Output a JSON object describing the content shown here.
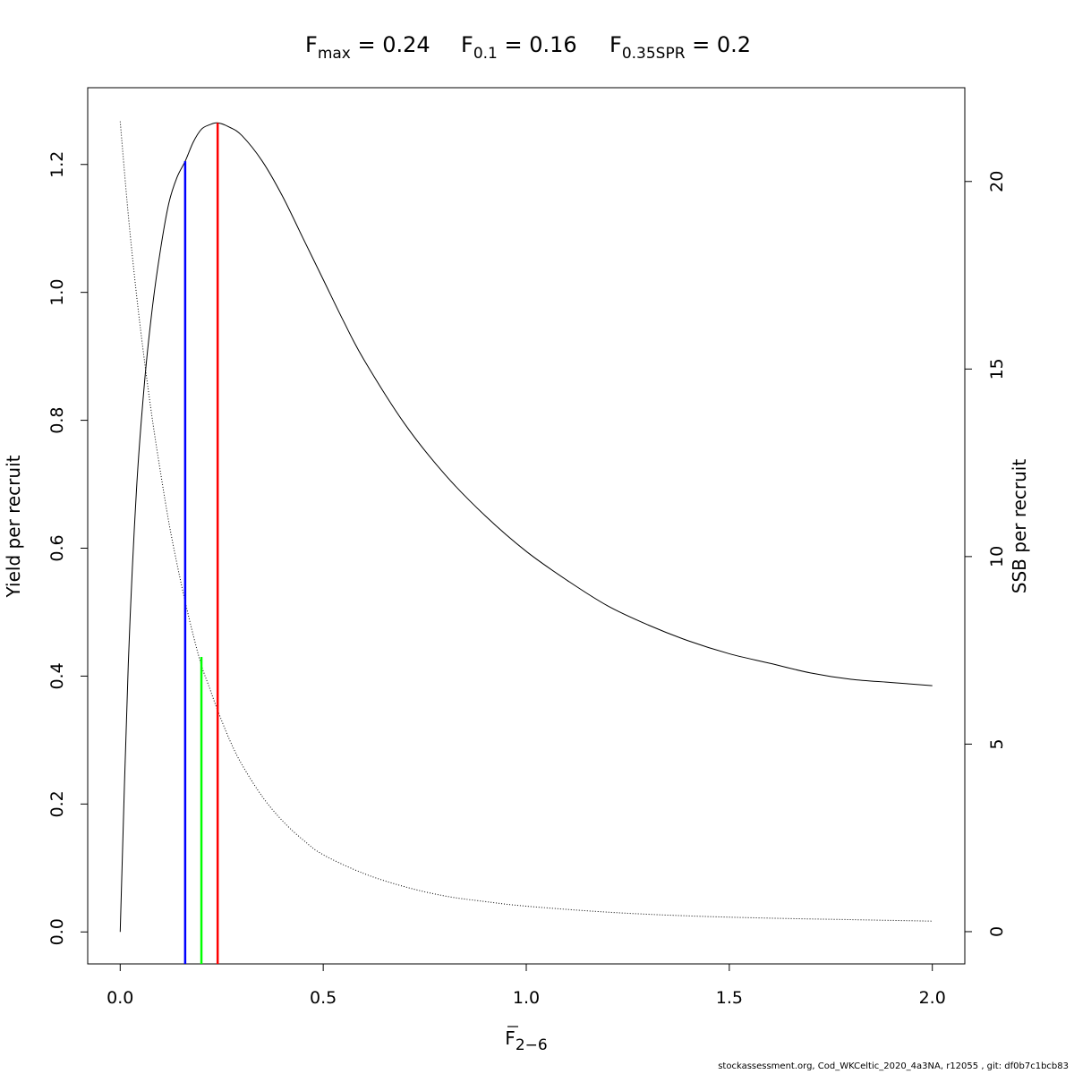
{
  "title": {
    "fmax": {
      "main": "F",
      "sub": "max",
      "rest": " = 0.24"
    },
    "f01": {
      "main": "F",
      "sub": "0.1",
      "rest": " = 0.16"
    },
    "fspr": {
      "main": "F",
      "sub": "0.35SPR",
      "rest": " = 0.2"
    }
  },
  "footer": "stockassessment.org, Cod_WKCeltic_2020_4a3NA, r12055 , git: df0b7c1bcb83",
  "chart_data": {
    "type": "line",
    "xlabel": {
      "main": "F",
      "sub": "2−6"
    },
    "ylabel_left": "Yield per recruit",
    "ylabel_right": "SSB per recruit",
    "xlim": [
      -0.08,
      2.08
    ],
    "ylim_left": [
      -0.05,
      1.32
    ],
    "ylim_right": [
      -0.86,
      22.5
    ],
    "x_ticks": [
      "0.0",
      "0.5",
      "1.0",
      "1.5",
      "2.0"
    ],
    "y_left_ticks": [
      "0.0",
      "0.2",
      "0.4",
      "0.6",
      "0.8",
      "1.0",
      "1.2"
    ],
    "y_right_ticks": [
      "0",
      "5",
      "10",
      "15",
      "20"
    ],
    "grid": false,
    "series": [
      {
        "role": "yield",
        "axis": "left",
        "style": "solid",
        "color": "#000000",
        "x": [
          0.0,
          0.02,
          0.04,
          0.06,
          0.08,
          0.1,
          0.12,
          0.14,
          0.16,
          0.18,
          0.2,
          0.22,
          0.24,
          0.27,
          0.3,
          0.35,
          0.4,
          0.45,
          0.5,
          0.55,
          0.6,
          0.7,
          0.8,
          0.9,
          1.0,
          1.1,
          1.2,
          1.3,
          1.4,
          1.5,
          1.6,
          1.7,
          1.8,
          1.9,
          2.0
        ],
        "y": [
          0.0,
          0.42,
          0.69,
          0.86,
          0.98,
          1.07,
          1.14,
          1.18,
          1.205,
          1.235,
          1.255,
          1.262,
          1.265,
          1.258,
          1.245,
          1.205,
          1.15,
          1.085,
          1.02,
          0.955,
          0.895,
          0.795,
          0.715,
          0.65,
          0.595,
          0.55,
          0.51,
          0.48,
          0.455,
          0.435,
          0.42,
          0.405,
          0.395,
          0.39,
          0.385
        ]
      },
      {
        "role": "ssb",
        "axis": "right",
        "style": "dotted",
        "color": "#000000",
        "x": [
          0.0,
          0.02,
          0.04,
          0.06,
          0.08,
          0.1,
          0.12,
          0.14,
          0.16,
          0.18,
          0.2,
          0.22,
          0.24,
          0.27,
          0.3,
          0.35,
          0.4,
          0.45,
          0.5,
          0.6,
          0.7,
          0.8,
          0.9,
          1.0,
          1.2,
          1.4,
          1.6,
          1.8,
          2.0
        ],
        "y": [
          21.6,
          19.1,
          17.0,
          15.2,
          13.6,
          12.2,
          10.9,
          9.8,
          8.8,
          7.9,
          7.1,
          6.5,
          5.9,
          5.1,
          4.45,
          3.6,
          2.95,
          2.45,
          2.05,
          1.55,
          1.2,
          0.95,
          0.8,
          0.68,
          0.52,
          0.42,
          0.36,
          0.32,
          0.28
        ]
      }
    ],
    "reference_lines": [
      {
        "name": "F0.1",
        "x": 0.16,
        "y_top": 1.205,
        "color": "#0000ff"
      },
      {
        "name": "F0.35SPR",
        "x": 0.2,
        "y_top": 0.43,
        "color": "#00ff00"
      },
      {
        "name": "Fmax",
        "x": 0.24,
        "y_top": 1.265,
        "color": "#ff0000"
      }
    ]
  }
}
